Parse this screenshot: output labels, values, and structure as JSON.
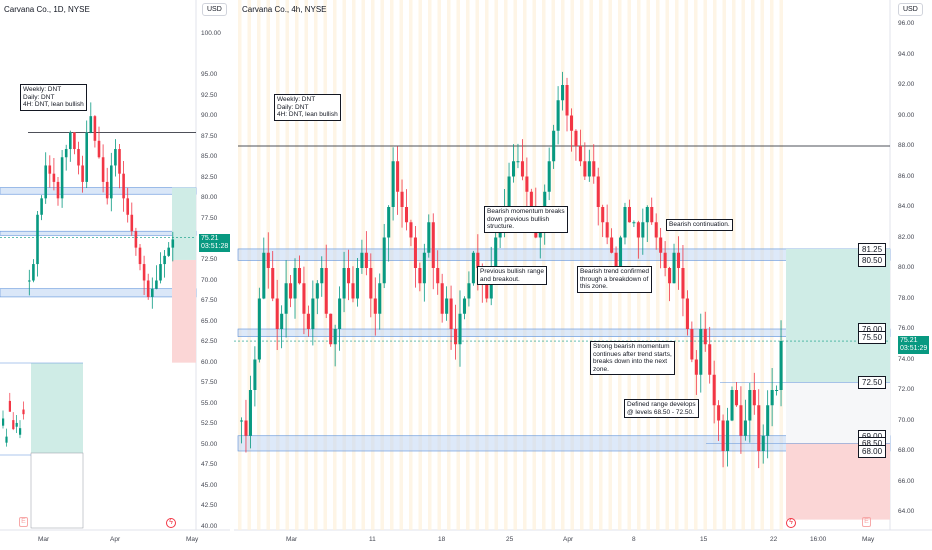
{
  "colors": {
    "up": "#089981",
    "down": "#f23645",
    "zone": "#bbd3f3",
    "zone_border": "#5b8fd9",
    "tp": "#cfece6",
    "sl": "#fbd6d6"
  },
  "left": {
    "title": "Carvana Co., 1D, NYSE",
    "currency": "USD",
    "annotation": "Weekly: DNT\nDaily: DNT\n4H: DNT, lean bullish",
    "price_ticks": [
      "100.00",
      "95.00",
      "92.50",
      "90.00",
      "87.50",
      "85.00",
      "82.50",
      "80.00",
      "77.50",
      "72.50",
      "70.00",
      "67.50",
      "65.00",
      "62.50",
      "60.00",
      "57.50",
      "55.00",
      "52.50",
      "50.00",
      "47.50",
      "45.00",
      "42.50",
      "40.00"
    ],
    "last_price": "75.21",
    "countdown": "03:51:28",
    "time_ticks": [
      "Mar",
      "Apr",
      "May"
    ]
  },
  "right": {
    "title": "Carvana Co., 4h, NYSE",
    "currency": "USD",
    "annotations": [
      "Weekly: DNT\nDaily: DNT\n4H: DNT, lean bullish",
      "Bearish momentum breaks\ndown previous bullish\nstructure.",
      "Previous bullish range\nand breakout.",
      "Bearish continuation.",
      "Bearish trend confirmed\nthrough a breakdown of\nthis zone.",
      "Strong bearish momentum\ncontinues after trend starts,\nbreaks down into the next\nzone.",
      "Defined range develops\n@ levels 68.50 - 72.50."
    ],
    "price_ticks": [
      "96.00",
      "94.00",
      "92.00",
      "90.00",
      "88.00",
      "86.00",
      "84.00",
      "82.00",
      "80.00",
      "78.00",
      "76.00",
      "74.00",
      "72.00",
      "70.00",
      "68.00",
      "66.00",
      "64.00"
    ],
    "levels": [
      "81.25",
      "80.50",
      "76.00",
      "75.50",
      "72.50",
      "69.00",
      "68.50",
      "68.00"
    ],
    "last_price": "75.21",
    "countdown": "03:51:29",
    "time_ticks": [
      "Mar",
      "11",
      "18",
      "25",
      "Apr",
      "8",
      "15",
      "22",
      "16:00",
      "May"
    ]
  }
}
